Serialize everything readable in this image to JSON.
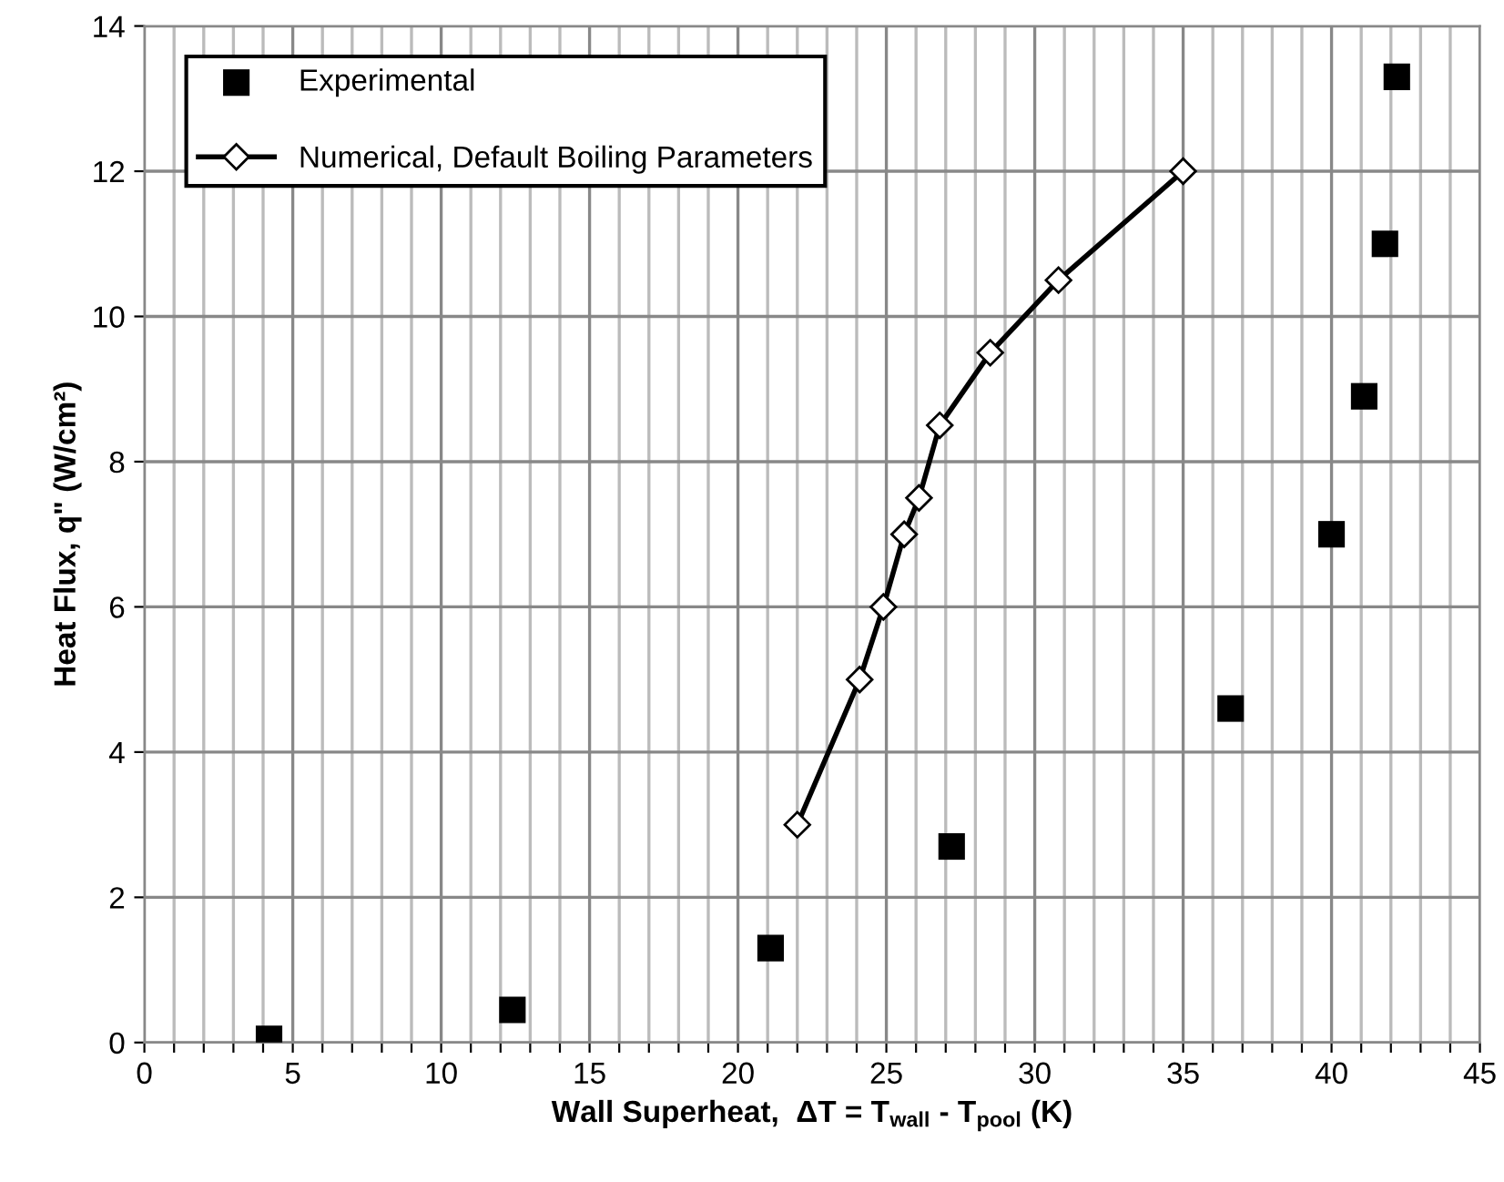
{
  "chart_data": {
    "type": "scatter",
    "xlabel": "Wall Superheat,  ΔT = T$_{wall}$ - T$_{pool}$ (K)",
    "ylabel": "Heat Flux, q\" (W/cm²)",
    "xlim": [
      0,
      45
    ],
    "ylim": [
      0,
      14
    ],
    "xticks": [
      0,
      {
        "value": 1,
        "label": null
      },
      {
        "value": 2,
        "label": null
      },
      {
        "value": 3,
        "label": null
      },
      {
        "value": 4,
        "label": null
      },
      5,
      {
        "value": 6,
        "label": null
      },
      {
        "value": 7,
        "label": null
      },
      {
        "value": 8,
        "label": null
      },
      {
        "value": 9,
        "label": null
      },
      10,
      {
        "value": 11,
        "label": null
      },
      {
        "value": 12,
        "label": null
      },
      {
        "value": 13,
        "label": null
      },
      {
        "value": 14,
        "label": null
      },
      15,
      {
        "value": 16,
        "label": null
      },
      {
        "value": 17,
        "label": null
      },
      {
        "value": 18,
        "label": null
      },
      {
        "value": 19,
        "label": null
      },
      20,
      {
        "value": 21,
        "label": null
      },
      {
        "value": 22,
        "label": null
      },
      {
        "value": 23,
        "label": null
      },
      {
        "value": 24,
        "label": null
      },
      25,
      {
        "value": 26,
        "label": null
      },
      {
        "value": 27,
        "label": null
      },
      {
        "value": 28,
        "label": null
      },
      {
        "value": 29,
        "label": null
      },
      30,
      {
        "value": 31,
        "label": null
      },
      {
        "value": 32,
        "label": null
      },
      {
        "value": 33,
        "label": null
      },
      {
        "value": 34,
        "label": null
      },
      35,
      {
        "value": 36,
        "label": null
      },
      {
        "value": 37,
        "label": null
      },
      {
        "value": 38,
        "label": null
      },
      {
        "value": 39,
        "label": null
      },
      40,
      {
        "value": 41,
        "label": null
      },
      {
        "value": 42,
        "label": null
      },
      {
        "value": 43,
        "label": null
      },
      {
        "value": 44,
        "label": null
      },
      45
    ],
    "yticks": [
      0,
      2,
      4,
      6,
      8,
      10,
      12,
      14
    ],
    "grid": true,
    "legend": "top left",
    "series": [
      {
        "name": "Experimental",
        "marker": "square",
        "color": "#000000",
        "x": [
          4.2,
          12.4,
          21.1,
          27.2,
          36.6,
          40.0,
          41.1,
          41.8,
          42.2
        ],
        "values": [
          0.05,
          0.45,
          1.3,
          2.7,
          4.6,
          7.0,
          8.9,
          11.0,
          13.3
        ]
      },
      {
        "name": "Numerical, Default Boiling Parameters",
        "type": "line",
        "marker": "diamond",
        "line_style": "solid",
        "color": "#000000",
        "x": [
          22.0,
          24.1,
          24.9,
          25.6,
          26.1,
          26.8,
          28.5,
          30.8,
          35.0
        ],
        "values": [
          3.0,
          5.0,
          6.0,
          7.0,
          7.5,
          8.5,
          9.5,
          10.5,
          12.0
        ]
      }
    ]
  }
}
